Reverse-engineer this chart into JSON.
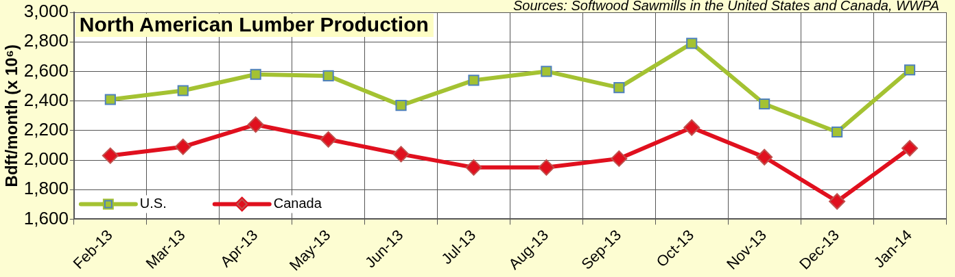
{
  "chart_data": {
    "type": "line",
    "title": "North American Lumber Production",
    "ylabel": "Bdft/month (x 10⁶)",
    "annotations": [
      "Sources: Softwood Sawmills in the United States and Canada, WWPA"
    ],
    "categories": [
      "Feb-13",
      "Mar-13",
      "Apr-13",
      "May-13",
      "Jun-13",
      "Jul-13",
      "Aug-13",
      "Sep-13",
      "Oct-13",
      "Nov-13",
      "Dec-13",
      "Jan-14"
    ],
    "series": [
      {
        "name": "U.S.",
        "color": "#a4c232",
        "marker": "square",
        "values": [
          2410,
          2470,
          2580,
          2570,
          2370,
          2540,
          2600,
          2490,
          2790,
          2380,
          2190,
          2610
        ]
      },
      {
        "name": "Canada",
        "color": "#e0101e",
        "marker": "diamond",
        "values": [
          2030,
          2090,
          2240,
          2140,
          2040,
          1950,
          1950,
          2010,
          2220,
          2020,
          1720,
          2080
        ]
      }
    ],
    "ylim": [
      1600,
      3000
    ],
    "yticks": [
      {
        "value": 1600,
        "label": "1,600"
      },
      {
        "value": 1800,
        "label": "1,800"
      },
      {
        "value": 2000,
        "label": "2,000"
      },
      {
        "value": 2200,
        "label": "2,200"
      },
      {
        "value": 2400,
        "label": "2,400"
      },
      {
        "value": 2600,
        "label": "2,600"
      },
      {
        "value": 2800,
        "label": "2,800"
      },
      {
        "value": 3000,
        "label": "3,000"
      }
    ],
    "grid": true,
    "legend": "bottom left",
    "line_style": "solid"
  }
}
